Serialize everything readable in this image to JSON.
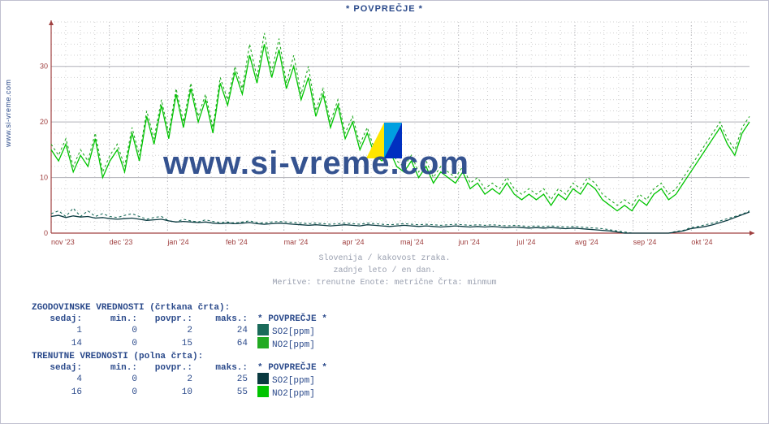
{
  "side_label": "www.si-vreme.com",
  "title": "* POVPREČJE *",
  "watermark_text": "www.si-vreme.com",
  "subcaption": {
    "line1": "Slovenija / kakovost zraka.",
    "line2": "zadnje leto / en dan.",
    "line3": "Meritve: trenutne  Enote: metrične  Črta: minmum"
  },
  "chart": {
    "plot_bg": "#ffffff",
    "grid_color": "#d0d0d0",
    "grid_major_color": "#b0b0b8",
    "axis_label_color": "#a04040",
    "arrow_color": "#a04040",
    "ylim": [
      0,
      38
    ],
    "yticks": [
      0,
      10,
      20,
      30
    ],
    "x_labels": [
      "nov '23",
      "dec '23",
      "jan '24",
      "feb '24",
      "mar '24",
      "apr '24",
      "maj '24",
      "jun '24",
      "jul '24",
      "avg '24",
      "sep '24",
      "okt '24"
    ],
    "n_points": 96,
    "series": {
      "so2_hist": {
        "color": "#1a6a5a",
        "dash": "3,3",
        "width": 1.1,
        "data": [
          3.5,
          4,
          3,
          4.5,
          3,
          4,
          3,
          3.5,
          3,
          2.8,
          3.2,
          3.5,
          3,
          2.5,
          2.8,
          3,
          2.2,
          2,
          2.5,
          2.2,
          2,
          2.4,
          2.1,
          1.9,
          2,
          1.8,
          2,
          2.2,
          1.9,
          1.8,
          2,
          2.1,
          2,
          1.9,
          1.8,
          1.7,
          1.8,
          1.7,
          1.6,
          1.7,
          1.8,
          1.7,
          1.6,
          1.8,
          1.7,
          1.6,
          1.5,
          1.6,
          1.7,
          1.6,
          1.5,
          1.6,
          1.5,
          1.4,
          1.5,
          1.6,
          1.5,
          1.4,
          1.5,
          1.4,
          1.5,
          1.4,
          1.3,
          1.4,
          1.3,
          1.2,
          1.3,
          1.2,
          1.3,
          1.2,
          1.1,
          1.2,
          1.1,
          1.0,
          0.9,
          0.8,
          0.6,
          0.4,
          0.2,
          0,
          0,
          0,
          0,
          0,
          0,
          0.3,
          0.5,
          1.0,
          1.2,
          1.5,
          1.8,
          2.2,
          2.6,
          3.0,
          3.4,
          4.0
        ]
      },
      "no2_hist": {
        "color": "#22aa22",
        "dash": "3,3",
        "width": 1.1,
        "data": [
          16,
          14,
          17,
          12,
          15,
          13,
          18,
          11,
          14,
          16,
          12,
          19,
          14,
          22,
          17,
          24,
          18,
          26,
          20,
          27,
          21,
          25,
          19,
          28,
          24,
          30,
          26,
          34,
          28,
          36,
          29,
          35,
          27,
          32,
          25,
          30,
          22,
          26,
          20,
          24,
          18,
          21,
          16,
          19,
          15,
          14,
          16,
          13,
          12,
          14,
          11,
          13,
          10,
          12,
          11,
          10,
          12,
          9,
          10,
          8,
          9,
          8,
          10,
          8,
          7,
          8,
          7,
          8,
          6,
          8,
          7,
          9,
          8,
          10,
          9,
          7,
          6,
          5,
          6,
          5,
          7,
          6,
          8,
          9,
          7,
          8,
          10,
          12,
          14,
          16,
          18,
          20,
          17,
          15,
          19,
          21
        ]
      },
      "so2_cur": {
        "color": "#0a3a40",
        "dash": "",
        "width": 1.3,
        "data": [
          3,
          3.2,
          2.8,
          3.1,
          2.9,
          3,
          2.7,
          2.8,
          2.6,
          2.5,
          2.6,
          2.7,
          2.5,
          2.3,
          2.4,
          2.5,
          2.2,
          2,
          2.1,
          2,
          1.9,
          2,
          1.8,
          1.7,
          1.8,
          1.7,
          1.8,
          1.9,
          1.7,
          1.6,
          1.7,
          1.8,
          1.7,
          1.6,
          1.5,
          1.4,
          1.5,
          1.4,
          1.3,
          1.4,
          1.5,
          1.4,
          1.3,
          1.5,
          1.4,
          1.3,
          1.2,
          1.3,
          1.4,
          1.3,
          1.2,
          1.3,
          1.2,
          1.1,
          1.2,
          1.3,
          1.2,
          1.1,
          1.2,
          1.1,
          1.2,
          1.1,
          1.0,
          1.1,
          1.0,
          0.9,
          1.0,
          0.9,
          1.0,
          0.9,
          0.8,
          0.9,
          0.8,
          0.7,
          0.6,
          0.5,
          0.4,
          0.2,
          0,
          -0.5,
          -0.8,
          -0.5,
          0,
          -0.3,
          0,
          0.2,
          0.4,
          0.8,
          1.0,
          1.2,
          1.5,
          1.9,
          2.3,
          2.8,
          3.3,
          3.8
        ]
      },
      "no2_cur": {
        "color": "#00c400",
        "dash": "",
        "width": 1.3,
        "data": [
          15,
          13,
          16,
          11,
          14,
          12,
          17,
          10,
          13,
          15,
          11,
          18,
          13,
          21,
          16,
          23,
          17,
          25,
          19,
          26,
          20,
          24,
          18,
          27,
          23,
          29,
          25,
          32,
          27,
          34,
          28,
          33,
          26,
          30,
          24,
          28,
          21,
          25,
          19,
          23,
          17,
          20,
          15,
          18,
          14,
          13,
          15,
          12,
          11,
          13,
          10,
          12,
          9,
          11,
          10,
          9,
          11,
          8,
          9,
          7,
          8,
          7,
          9,
          7,
          6,
          7,
          6,
          7,
          5,
          7,
          6,
          8,
          7,
          9,
          8,
          6,
          5,
          4,
          5,
          4,
          6,
          5,
          7,
          8,
          6,
          7,
          9,
          11,
          13,
          15,
          17,
          19,
          16,
          14,
          18,
          20
        ]
      }
    }
  },
  "legend": {
    "hist_title": "ZGODOVINSKE VREDNOSTI (črtkana črta):",
    "cur_title": "TRENUTNE VREDNOSTI (polna črta):",
    "header": {
      "c0": "sedaj:",
      "c1": "min.:",
      "c2": "povpr.:",
      "c3": "maks.:",
      "c4": "* POVPREČJE *"
    },
    "hist_rows": [
      {
        "sedaj": "1",
        "min": "0",
        "povpr": "2",
        "maks": "24",
        "swatch": "#1a6a5a",
        "label": "SO2[ppm]"
      },
      {
        "sedaj": "14",
        "min": "0",
        "povpr": "15",
        "maks": "64",
        "swatch": "#22aa22",
        "label": "NO2[ppm]"
      }
    ],
    "cur_rows": [
      {
        "sedaj": "4",
        "min": "0",
        "povpr": "2",
        "maks": "25",
        "swatch": "#0a3a40",
        "label": "SO2[ppm]"
      },
      {
        "sedaj": "16",
        "min": "0",
        "povpr": "10",
        "maks": "55",
        "swatch": "#00c400",
        "label": "NO2[ppm]"
      }
    ]
  },
  "logo_colors": {
    "a": "#ffe600",
    "b": "#00a0e0",
    "c": "#0030c0"
  }
}
